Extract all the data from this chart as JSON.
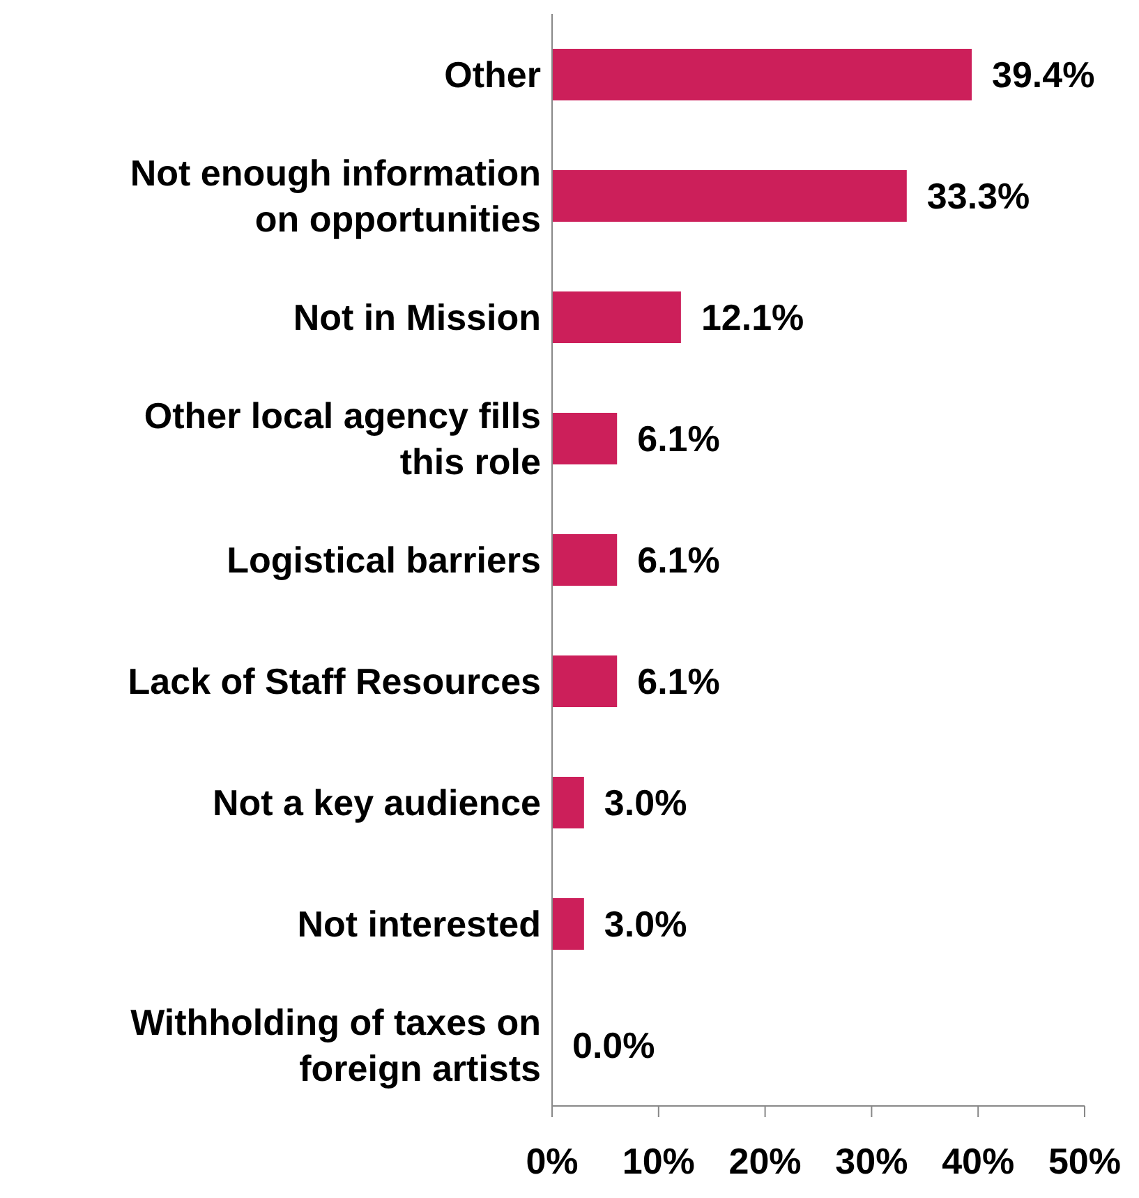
{
  "chart_data": {
    "type": "bar",
    "orientation": "horizontal",
    "categories": [
      "Other",
      "Not enough information on opportunities",
      "Not in Mission",
      "Other local agency fills this role",
      "Logistical barriers",
      "Lack of Staff Resources",
      "Not a key audience",
      "Not interested",
      "Withholding of taxes on foreign artists"
    ],
    "values": [
      39.4,
      33.3,
      12.1,
      6.1,
      6.1,
      6.1,
      3.0,
      3.0,
      0.0
    ],
    "value_labels": [
      "39.4%",
      "33.3%",
      "12.1%",
      "6.1%",
      "6.1%",
      "6.1%",
      "3.0%",
      "3.0%",
      "0.0%"
    ],
    "color": "#cc1f5a",
    "xlim": [
      0,
      50
    ],
    "xticks": [
      {
        "value": 0,
        "label": "0%"
      },
      {
        "value": 10,
        "label": "10%"
      },
      {
        "value": 20,
        "label": "20%"
      },
      {
        "value": 30,
        "label": "30%"
      },
      {
        "value": 40,
        "label": "40%"
      },
      {
        "value": 50,
        "label": "50%"
      }
    ],
    "grid": false,
    "legend": false
  }
}
